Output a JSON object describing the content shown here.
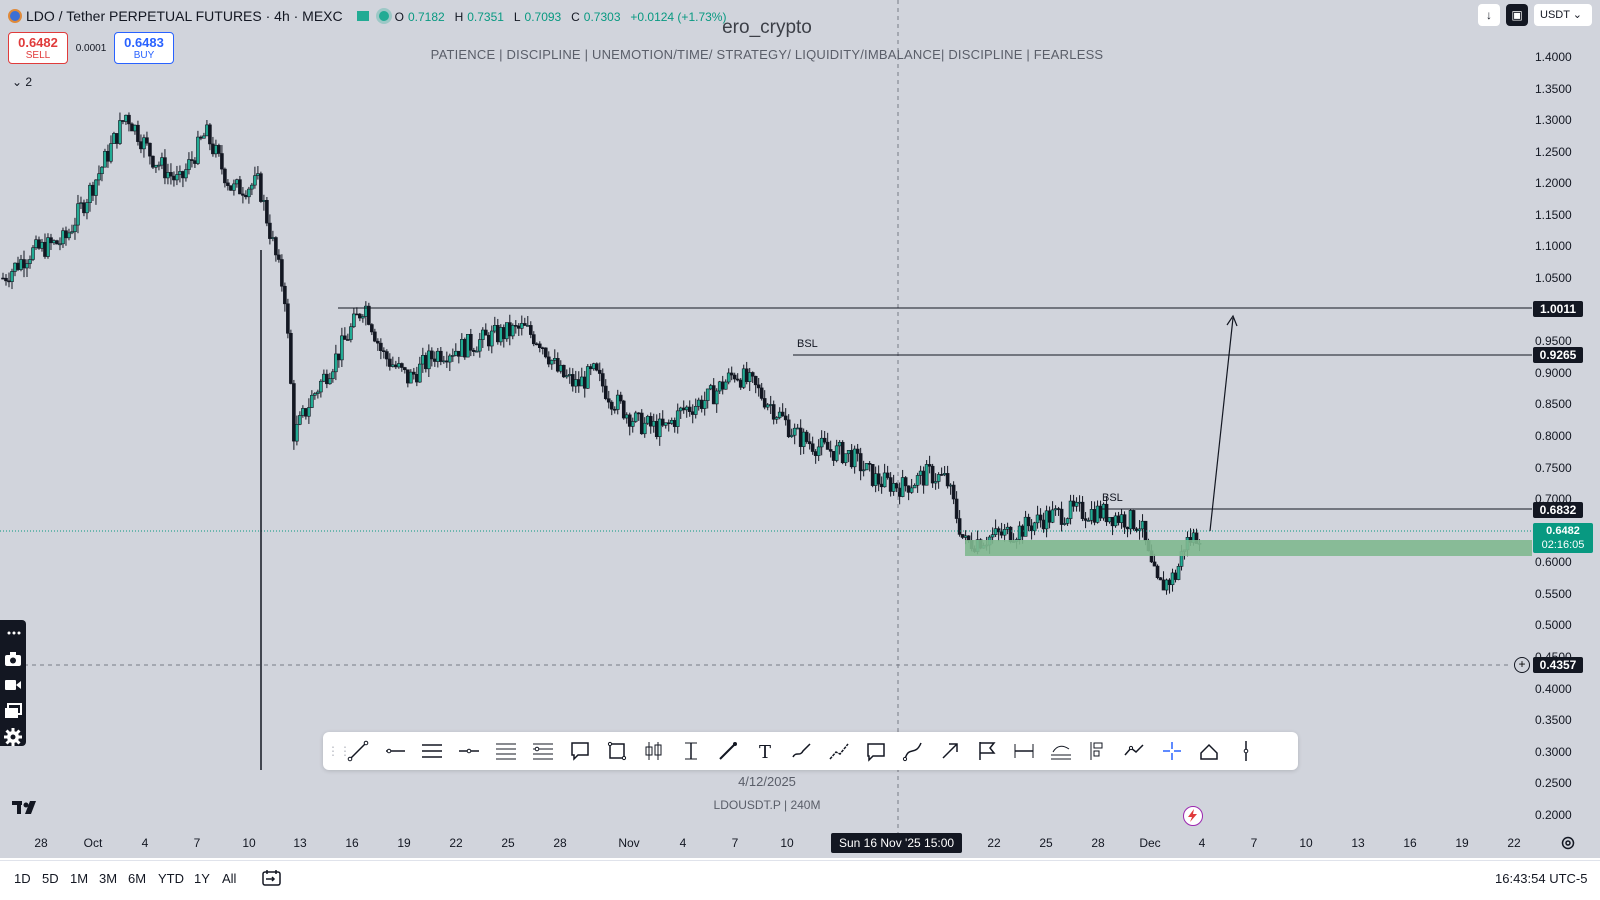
{
  "header": {
    "title": "LDO / Tether PERPETUAL FUTURES · 4h · MEXC",
    "ohlc": [
      {
        "k": "O",
        "v": "0.7182"
      },
      {
        "k": "H",
        "v": "0.7351"
      },
      {
        "k": "L",
        "v": "0.7093"
      },
      {
        "k": "C",
        "v": "0.7303"
      },
      {
        "k": "",
        "v": "+0.0124 (+1.73%)"
      }
    ]
  },
  "trade": {
    "sell_price": "0.6482",
    "sell_label": "SELL",
    "spread": "0.0001",
    "buy_price": "0.6483",
    "buy_label": "BUY"
  },
  "indicators_count": "2",
  "watermark": {
    "author": "ero_crypto",
    "motto": "PATIENCE   |   DISCIPLINE   |   UNEMOTION/TIME/ STRATEGY/ LIQUIDITY/IMBALANCE|   DISCIPLINE   |   FEARLESS",
    "date": "4/12/2025",
    "symbol_info": "LDOUSDT.P  |  240M"
  },
  "topright": {
    "currency": "USDT"
  },
  "price_axis": [
    "1.4000",
    "1.3500",
    "1.3000",
    "1.2500",
    "1.2000",
    "1.1500",
    "1.1000",
    "1.0500",
    "0.9500",
    "0.9000",
    "0.8500",
    "0.8000",
    "0.7500",
    "0.7000",
    "0.6000",
    "0.5500",
    "0.5000",
    "0.4500",
    "0.4000",
    "0.3500",
    "0.3000",
    "0.2500",
    "0.2000"
  ],
  "price_tags": {
    "level_1": "1.0011",
    "level_2": "0.9265",
    "level_3": "0.6832",
    "current_price": "0.6482",
    "countdown": "02:16:05",
    "crosshair_price": "0.4357"
  },
  "annotations": {
    "bsl_1": "BSL",
    "bsl_2": "BSL"
  },
  "time_axis": [
    "28",
    "Oct",
    "4",
    "7",
    "10",
    "13",
    "16",
    "19",
    "22",
    "25",
    "28",
    "Nov",
    "4",
    "7",
    "10",
    "22",
    "25",
    "28",
    "Dec",
    "4",
    "7",
    "10",
    "13",
    "16",
    "19",
    "22"
  ],
  "crosshair_time": "Sun 16 Nov '25   15:00",
  "drawing_tools": [
    "trend-line-icon",
    "horizontal-ray-icon",
    "parallel-channel-icon",
    "horizontal-line-icon",
    "fib-retracement-icon",
    "fib-channel-icon",
    "callout-icon",
    "rectangle-icon",
    "candle-pattern-icon",
    "date-range-icon",
    "arrow-marker-icon",
    "text-icon",
    "brush-icon",
    "path-icon",
    "comment-icon",
    "curve-icon",
    "arrow-icon",
    "flag-icon",
    "price-range-icon",
    "forecast-icon",
    "long-position-icon",
    "polyline-icon",
    "crosshair-icon",
    "measure-icon",
    "vertical-line-icon"
  ],
  "ranges": [
    "1D",
    "5D",
    "1M",
    "3M",
    "6M",
    "YTD",
    "1Y",
    "All"
  ],
  "clock": "16:43:54 UTC-5",
  "chart_data": {
    "type": "candlestick",
    "timeframe": "4h",
    "ylim": [
      0.2,
      1.4
    ],
    "keypoints": [
      [
        0,
        1.05
      ],
      [
        3,
        1.09
      ],
      [
        7,
        1.11
      ],
      [
        11,
        1.22
      ],
      [
        14,
        1.31
      ],
      [
        17,
        1.24
      ],
      [
        20,
        1.2
      ],
      [
        23,
        1.28
      ],
      [
        26,
        1.19
      ],
      [
        29,
        1.2
      ],
      [
        32,
        1.02
      ],
      [
        33,
        0.8
      ],
      [
        35,
        0.86
      ],
      [
        38,
        0.93
      ],
      [
        41,
        1.01
      ],
      [
        43,
        0.93
      ],
      [
        46,
        0.89
      ],
      [
        49,
        0.93
      ],
      [
        52,
        0.94
      ],
      [
        56,
        0.96
      ],
      [
        59,
        0.97
      ],
      [
        61,
        0.95
      ],
      [
        63,
        0.9
      ],
      [
        65,
        0.88
      ],
      [
        67,
        0.9
      ],
      [
        69,
        0.86
      ],
      [
        72,
        0.82
      ],
      [
        75,
        0.81
      ],
      [
        77,
        0.84
      ],
      [
        80,
        0.86
      ],
      [
        83,
        0.9
      ],
      [
        85,
        0.88
      ],
      [
        87,
        0.85
      ],
      [
        90,
        0.8
      ],
      [
        93,
        0.78
      ],
      [
        96,
        0.77
      ],
      [
        99,
        0.73
      ],
      [
        102,
        0.72
      ],
      [
        105,
        0.74
      ],
      [
        107,
        0.73
      ],
      [
        109,
        0.63
      ],
      [
        112,
        0.64
      ],
      [
        115,
        0.65
      ],
      [
        118,
        0.67
      ],
      [
        121,
        0.68
      ],
      [
        124,
        0.68
      ],
      [
        127,
        0.67
      ],
      [
        129,
        0.66
      ],
      [
        130,
        0.6
      ],
      [
        131,
        0.56
      ],
      [
        133,
        0.58
      ],
      [
        134,
        0.63
      ],
      [
        136,
        0.65
      ]
    ],
    "horizontal_levels": [
      1.0011,
      0.9265,
      0.6832
    ],
    "demand_zone": [
      0.61,
      0.635
    ]
  }
}
